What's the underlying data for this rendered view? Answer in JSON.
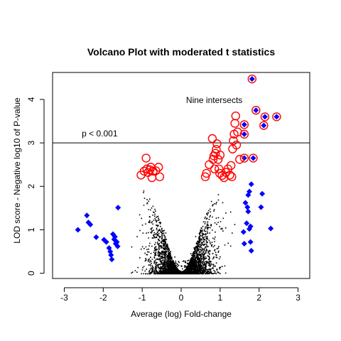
{
  "chart_data": {
    "type": "scatter",
    "title": "Volcano Plot with moderated t statistics",
    "xlabel": "Average (log) Fold-change",
    "ylabel": "LOD score - Negative log10 of P-value",
    "xlim": [
      -3.3,
      3.3
    ],
    "ylim": [
      -0.12,
      4.62
    ],
    "x_ticks": [
      -3,
      -2,
      -1,
      0,
      1,
      2,
      3
    ],
    "y_ticks": [
      0,
      1,
      2,
      3,
      4
    ],
    "grid": false,
    "legend": "none",
    "threshold": {
      "y": 3,
      "label": "p < 0.001"
    },
    "annotations": [
      {
        "text": "Nine intersects",
        "x": 0.85,
        "y": 3.98
      }
    ],
    "colors": {
      "background": "#ffffff",
      "points": "#000000",
      "fold_change": "#0000ff",
      "significant": "#ff0000",
      "axes": "#000000"
    },
    "series": [
      {
        "marker": "diamond",
        "color": "#0000ff",
        "points": [
          [
            -2.65,
            1.0
          ],
          [
            -2.42,
            1.33
          ],
          [
            -2.38,
            1.17
          ],
          [
            -2.33,
            1.12
          ],
          [
            -2.18,
            0.83
          ],
          [
            -1.98,
            0.77
          ],
          [
            -1.92,
            0.72
          ],
          [
            -1.85,
            0.58
          ],
          [
            -1.82,
            0.5
          ],
          [
            -1.8,
            0.42
          ],
          [
            -1.78,
            0.32
          ],
          [
            -1.75,
            0.9
          ],
          [
            -1.72,
            0.78
          ],
          [
            -1.7,
            0.84
          ],
          [
            -1.68,
            0.68
          ],
          [
            -1.65,
            0.72
          ],
          [
            -1.63,
            0.62
          ],
          [
            -1.62,
            1.51
          ],
          [
            1.62,
            0.68
          ],
          [
            1.6,
            0.95
          ],
          [
            1.65,
            1.62
          ],
          [
            1.68,
            1.15
          ],
          [
            1.7,
            1.52
          ],
          [
            1.72,
            1.8
          ],
          [
            1.75,
            1.88
          ],
          [
            1.72,
            1.42
          ],
          [
            1.75,
            1.02
          ],
          [
            1.78,
            1.08
          ],
          [
            1.8,
            2.05
          ],
          [
            1.78,
            0.72
          ],
          [
            1.8,
            0.52
          ],
          [
            2.05,
            1.52
          ],
          [
            2.08,
            1.83
          ],
          [
            2.3,
            1.03
          ],
          [
            1.62,
            2.65
          ],
          [
            1.62,
            3.2
          ],
          [
            1.62,
            3.42
          ],
          [
            1.85,
            2.65
          ],
          [
            1.92,
            3.75
          ],
          [
            2.12,
            3.4
          ],
          [
            2.15,
            3.6
          ],
          [
            2.45,
            3.6
          ],
          [
            1.82,
            4.47
          ]
        ]
      },
      {
        "marker": "open-circle",
        "color": "#ff0000",
        "points": [
          [
            -1.03,
            2.26
          ],
          [
            -0.95,
            2.35
          ],
          [
            -0.9,
            2.65
          ],
          [
            -0.88,
            2.4
          ],
          [
            -0.85,
            2.32
          ],
          [
            -0.8,
            2.38
          ],
          [
            -0.78,
            2.44
          ],
          [
            -0.75,
            2.2
          ],
          [
            -0.72,
            2.35
          ],
          [
            -0.65,
            2.36
          ],
          [
            -0.58,
            2.44
          ],
          [
            -0.55,
            2.22
          ],
          [
            0.62,
            2.22
          ],
          [
            0.65,
            2.3
          ],
          [
            0.72,
            2.5
          ],
          [
            0.8,
            3.1
          ],
          [
            0.82,
            2.62
          ],
          [
            0.84,
            2.7
          ],
          [
            0.86,
            2.4
          ],
          [
            0.88,
            2.76
          ],
          [
            0.9,
            2.85
          ],
          [
            0.92,
            2.98
          ],
          [
            0.95,
            2.62
          ],
          [
            0.97,
            2.4
          ],
          [
            0.99,
            2.3
          ],
          [
            1.0,
            2.72
          ],
          [
            1.05,
            2.25
          ],
          [
            1.1,
            2.2
          ],
          [
            1.15,
            2.32
          ],
          [
            1.2,
            2.4
          ],
          [
            1.25,
            2.26
          ],
          [
            1.28,
            2.48
          ],
          [
            1.3,
            2.22
          ],
          [
            1.32,
            2.86
          ],
          [
            1.34,
            3.05
          ],
          [
            1.36,
            3.2
          ],
          [
            1.38,
            3.45
          ],
          [
            1.4,
            3.62
          ],
          [
            1.42,
            2.95
          ],
          [
            1.45,
            3.25
          ],
          [
            1.5,
            2.62
          ],
          [
            1.62,
            2.65
          ],
          [
            1.62,
            3.2
          ],
          [
            1.62,
            3.42
          ],
          [
            1.85,
            2.65
          ],
          [
            1.92,
            3.75
          ],
          [
            2.12,
            3.4
          ],
          [
            2.15,
            3.6
          ],
          [
            2.45,
            3.6
          ],
          [
            1.82,
            4.47
          ]
        ]
      }
    ]
  }
}
